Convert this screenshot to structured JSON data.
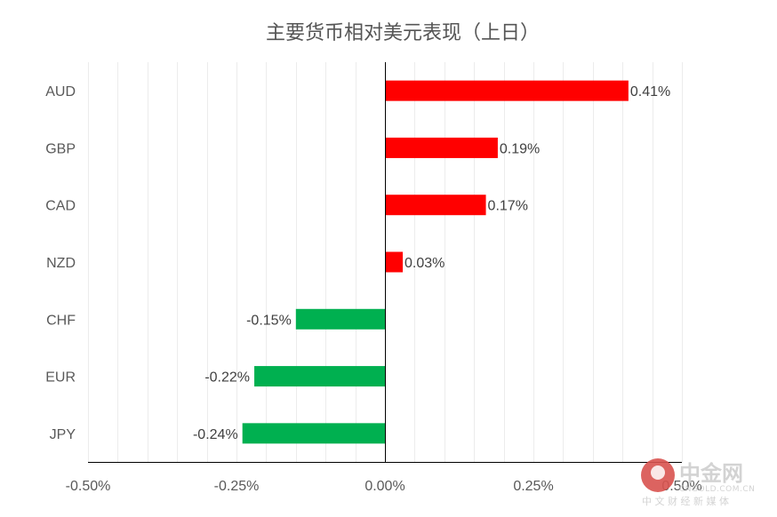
{
  "chart_data": {
    "type": "bar",
    "orientation": "horizontal",
    "title": "主要货币相对美元表现（上日）",
    "categories": [
      "AUD",
      "GBP",
      "CAD",
      "NZD",
      "CHF",
      "EUR",
      "JPY"
    ],
    "values": [
      0.41,
      0.19,
      0.17,
      0.03,
      -0.15,
      -0.22,
      -0.24
    ],
    "data_labels": [
      "0.41%",
      "0.19%",
      "0.17%",
      "0.03%",
      "-0.15%",
      "-0.22%",
      "-0.24%"
    ],
    "xlim": [
      -0.5,
      0.5
    ],
    "x_ticks": [
      -0.5,
      -0.25,
      0,
      0.25,
      0.5
    ],
    "x_tick_labels": [
      "-0.50%",
      "-0.25%",
      "0.00%",
      "0.25%",
      "0.50%"
    ],
    "grid": true,
    "colors": {
      "positive": "#ff0000",
      "negative": "#00b050"
    }
  },
  "watermark": {
    "brand": "中金网",
    "domain": "CNGOLD.COM.CN",
    "tagline": "中 文 财 经 新 媒 体",
    "colors": {
      "logo": "#d9534f",
      "text": "#cccccc"
    }
  }
}
